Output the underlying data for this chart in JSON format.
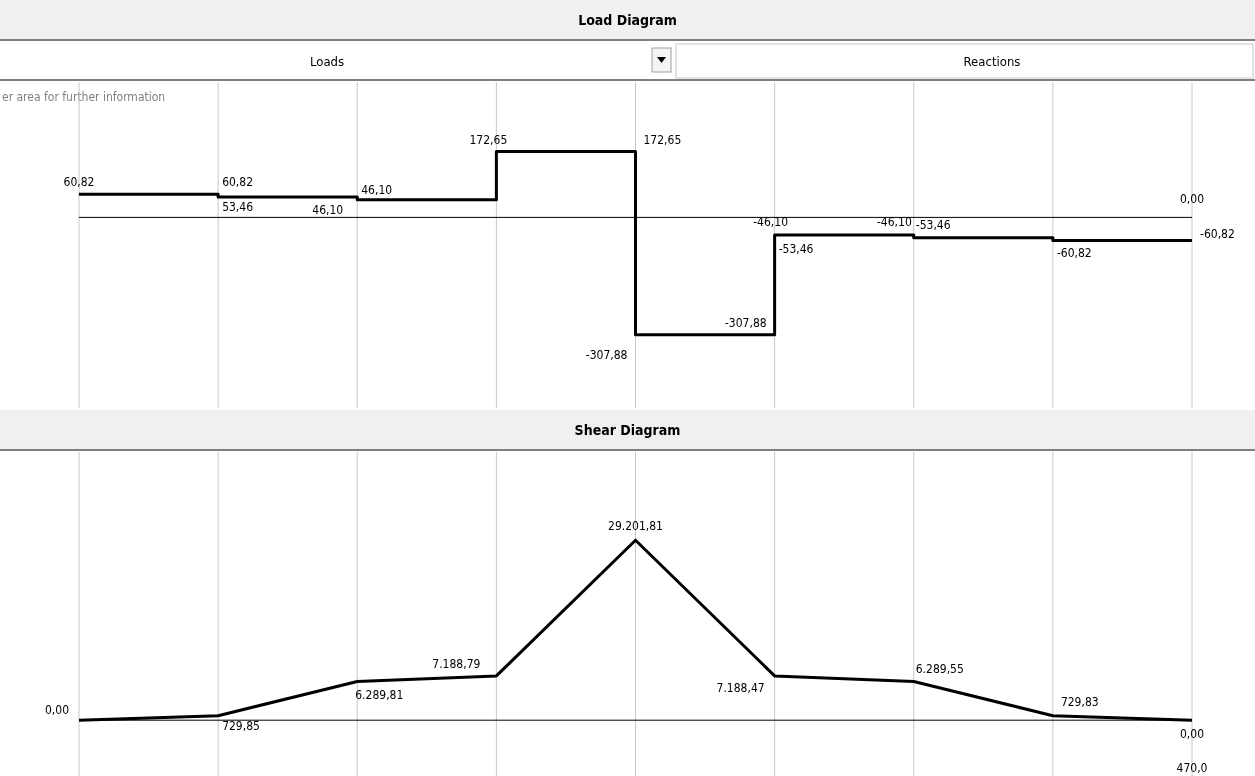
{
  "chart_data": [
    {
      "type": "step",
      "title": "Load Diagram",
      "categories": [
        null,
        null,
        null,
        null,
        null,
        null,
        null,
        null,
        null
      ],
      "grid": "x",
      "series": [
        {
          "color": "#000000",
          "values": [
            60.82,
            53.46,
            46.1,
            172.65,
            -307.88,
            -46.1,
            -53.46,
            -60.82,
            -60.82
          ],
          "value_labels": [
            "60,82",
            "53,46",
            "46,10",
            "172,65",
            "-307,88",
            "-46,10",
            "-53,46",
            "-60,82",
            "-60,82"
          ]
        }
      ],
      "annotations": [
        "Loads",
        "Reactions",
        "er area for further information",
        "60,82",
        "46,10",
        "172,65",
        "-307,88",
        "-46,10",
        "-53,46",
        "0,00"
      ]
    },
    {
      "type": "line",
      "title": "Shear Diagram",
      "categories": [
        null,
        null,
        null,
        null,
        null,
        null,
        null,
        null,
        null
      ],
      "grid": "x",
      "series": [
        {
          "color": "#000000",
          "values": [
            0,
            729.85,
            6289.81,
            7188.79,
            29201.81,
            7188.47,
            6289.55,
            729.83,
            0
          ],
          "value_labels": [
            "0,00",
            "729,85",
            "6.289,81",
            "7.188,79",
            "29.201,81",
            "7.188,47",
            "6.289,55",
            "729,83",
            "0,00"
          ]
        }
      ],
      "annotations": [
        "470,0"
      ]
    }
  ]
}
